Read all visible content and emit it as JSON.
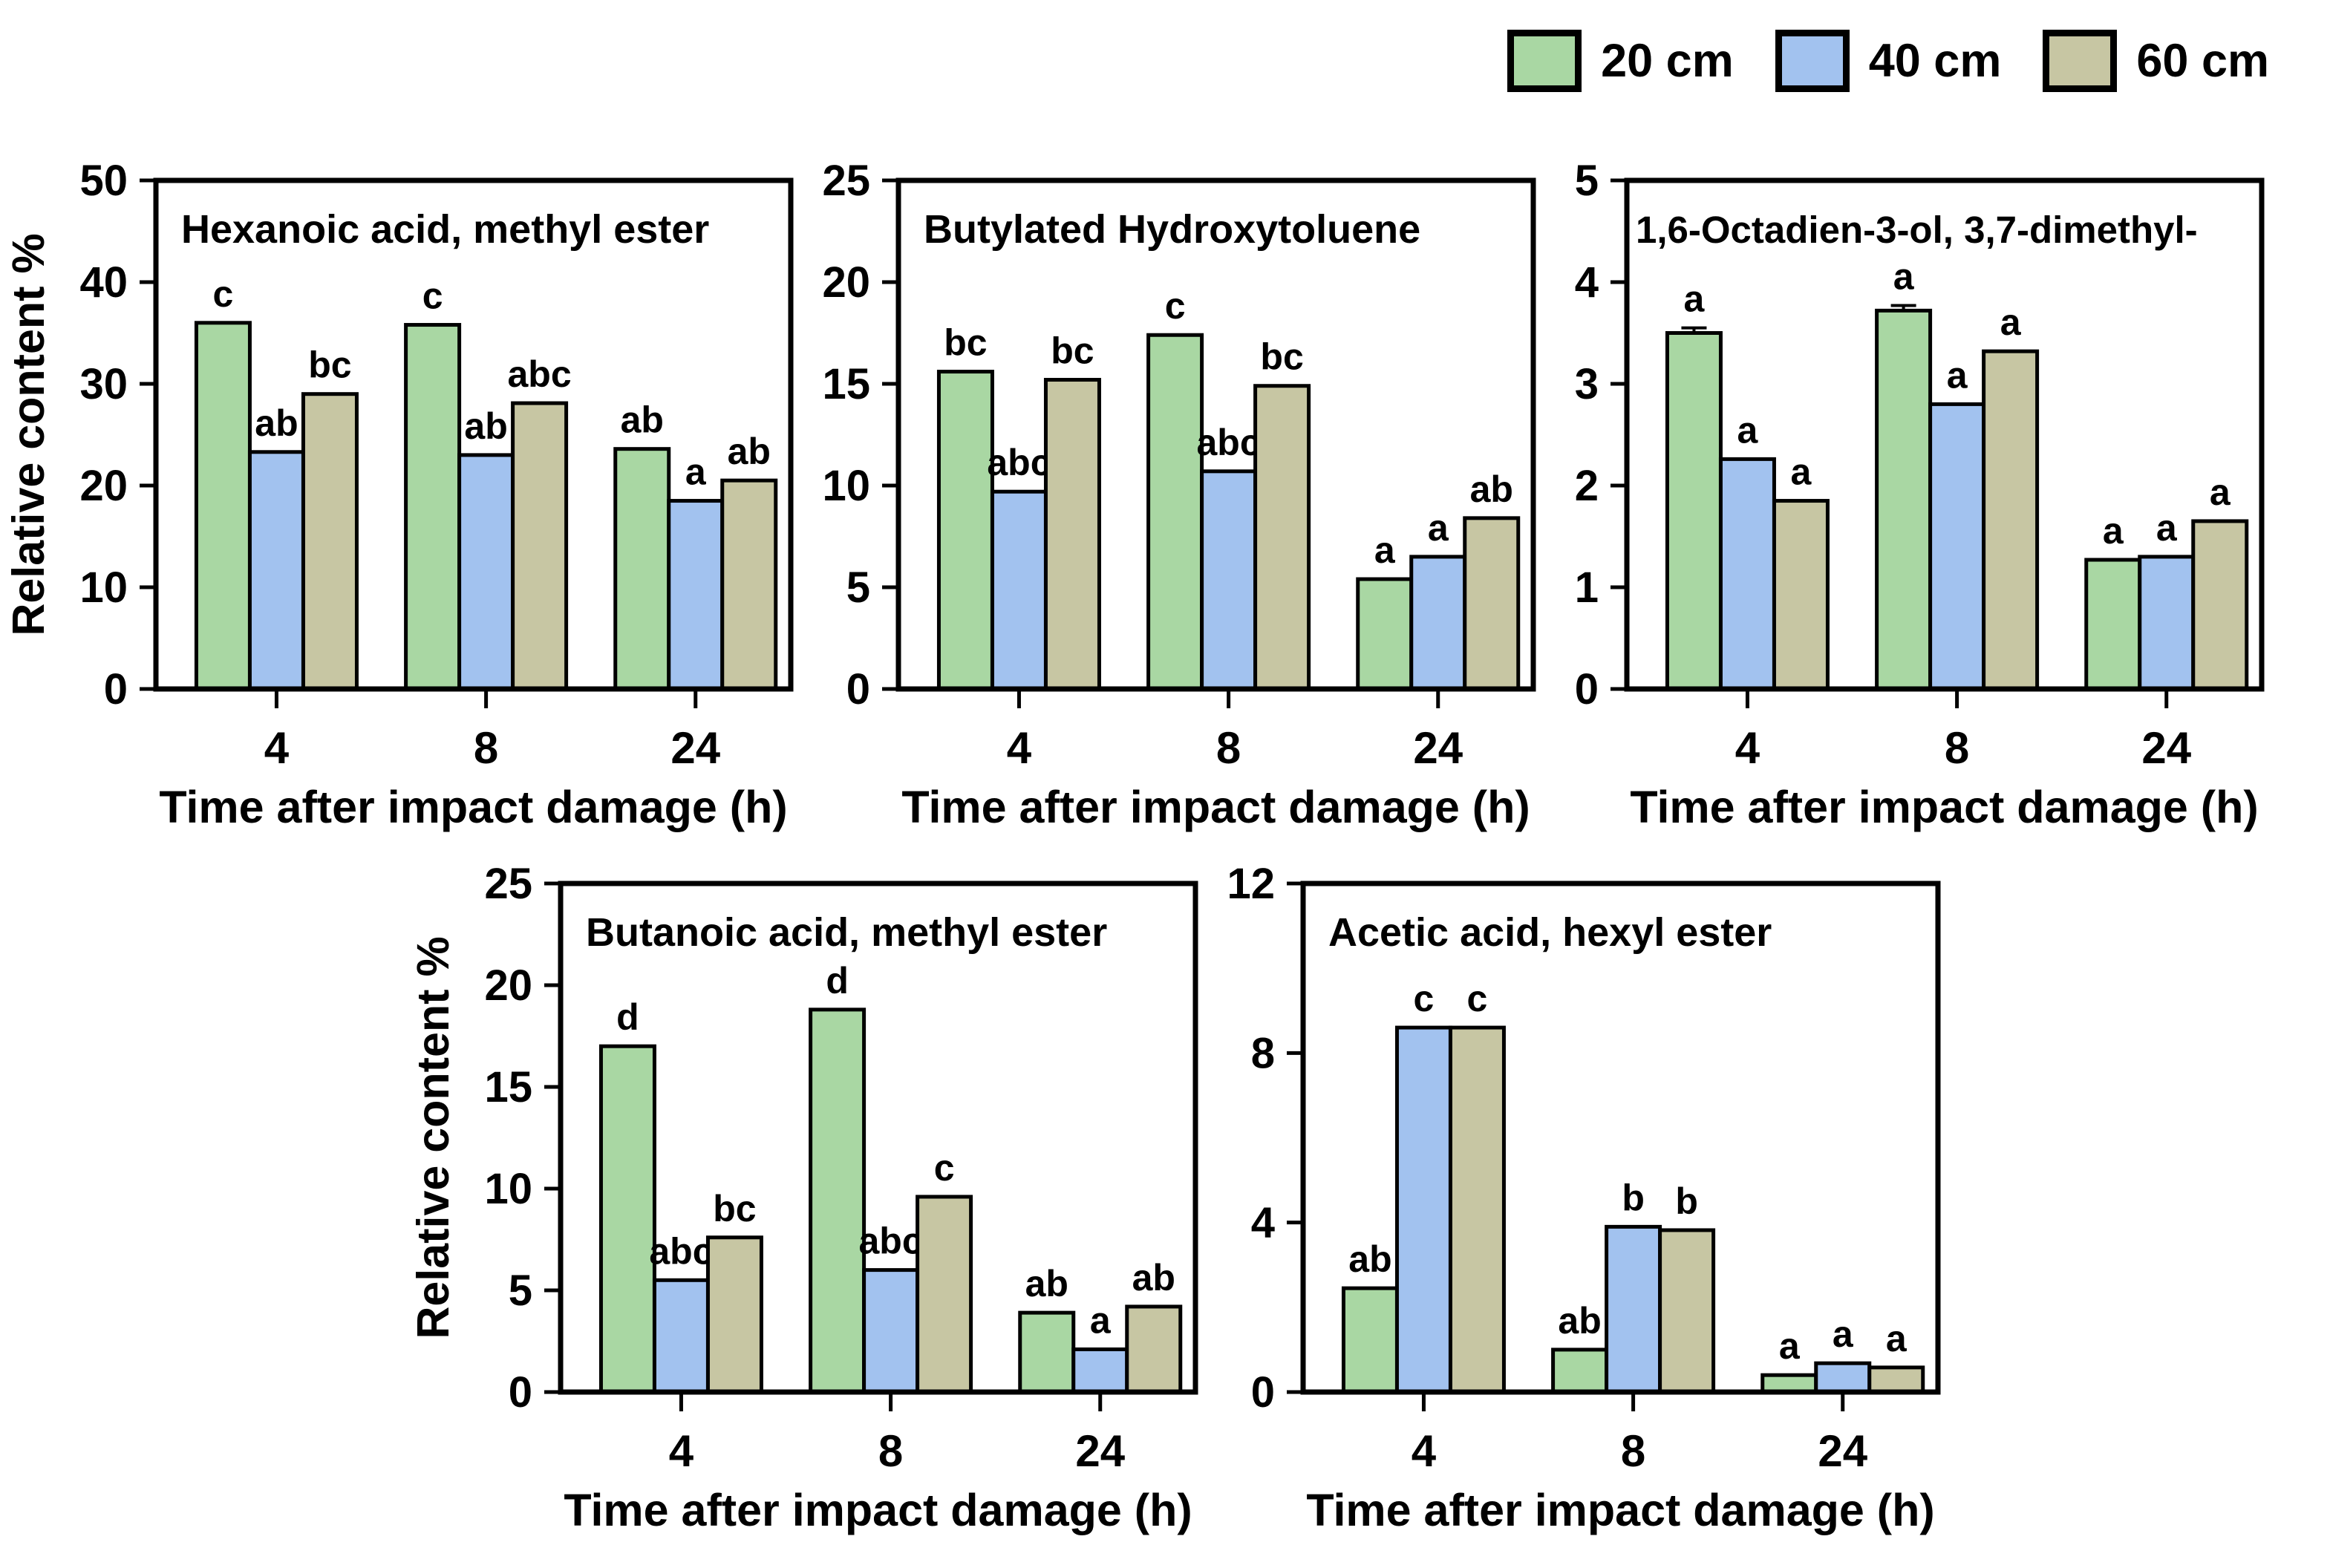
{
  "figure": {
    "xlabel": "Time after impact damage (h)",
    "ylabel": "Relative content %"
  },
  "legend": {
    "items": [
      {
        "label": "20 cm",
        "color": "#a9d7a3"
      },
      {
        "label": "40 cm",
        "color": "#a2c2ef"
      },
      {
        "label": "60 cm",
        "color": "#c7c6a3"
      }
    ],
    "border_color": "#000000",
    "position": "top-right"
  },
  "chart_data": [
    {
      "type": "bar",
      "title": "Hexanoic acid, methyl ester",
      "categories": [
        "4",
        "8",
        "24"
      ],
      "xlabel": "Time after impact damage (h)",
      "ylabel": "Relative content %",
      "ylim": [
        0,
        50
      ],
      "ytick_step": 10,
      "grid": false,
      "series": [
        {
          "name": "20 cm",
          "values": [
            36.0,
            35.8,
            23.6
          ],
          "letters": [
            "c",
            "c",
            "ab"
          ]
        },
        {
          "name": "40 cm",
          "values": [
            23.3,
            23.0,
            18.5
          ],
          "letters": [
            "ab",
            "ab",
            "a"
          ]
        },
        {
          "name": "60 cm",
          "values": [
            29.0,
            28.1,
            20.5
          ],
          "letters": [
            "bc",
            "abc",
            "ab"
          ]
        }
      ]
    },
    {
      "type": "bar",
      "title": "Butylated Hydroxytoluene",
      "categories": [
        "4",
        "8",
        "24"
      ],
      "xlabel": "Time after impact damage (h)",
      "ylabel": "",
      "ylim": [
        0,
        25
      ],
      "ytick_step": 5,
      "grid": false,
      "series": [
        {
          "name": "20 cm",
          "values": [
            15.6,
            17.4,
            5.4
          ],
          "letters": [
            "bc",
            "c",
            "a"
          ]
        },
        {
          "name": "40 cm",
          "values": [
            9.7,
            10.7,
            6.5
          ],
          "letters": [
            "abc",
            "abc",
            "a"
          ]
        },
        {
          "name": "60 cm",
          "values": [
            15.2,
            14.9,
            8.4
          ],
          "letters": [
            "bc",
            "bc",
            "ab"
          ]
        }
      ]
    },
    {
      "type": "bar",
      "title": "1,6-Octadien-3-ol, 3,7-dimethyl-",
      "categories": [
        "4",
        "8",
        "24"
      ],
      "xlabel": "Time after impact damage (h)",
      "ylabel": "",
      "ylim": [
        0,
        5
      ],
      "ytick_step": 1,
      "grid": false,
      "series": [
        {
          "name": "20 cm",
          "values": [
            3.5,
            3.72,
            1.27
          ],
          "letters": [
            "a",
            "a",
            "a"
          ],
          "err": [
            0.05,
            0.05,
            0
          ]
        },
        {
          "name": "40 cm",
          "values": [
            2.26,
            2.8,
            1.3
          ],
          "letters": [
            "a",
            "a",
            "a"
          ]
        },
        {
          "name": "60 cm",
          "values": [
            1.85,
            3.32,
            1.65
          ],
          "letters": [
            "a",
            "a",
            "a"
          ]
        }
      ]
    },
    {
      "type": "bar",
      "title": "Butanoic acid, methyl ester",
      "categories": [
        "4",
        "8",
        "24"
      ],
      "xlabel": "Time after impact damage (h)",
      "ylabel": "Relative content %",
      "ylim": [
        0,
        25
      ],
      "ytick_step": 5,
      "grid": false,
      "series": [
        {
          "name": "20 cm",
          "values": [
            17.0,
            18.8,
            3.9
          ],
          "letters": [
            "d",
            "d",
            "ab"
          ]
        },
        {
          "name": "40 cm",
          "values": [
            5.5,
            6.0,
            2.1
          ],
          "letters": [
            "abc",
            "abc",
            "a"
          ]
        },
        {
          "name": "60 cm",
          "values": [
            7.6,
            9.6,
            4.2
          ],
          "letters": [
            "bc",
            "c",
            "ab"
          ]
        }
      ]
    },
    {
      "type": "bar",
      "title": "Acetic acid, hexyl ester",
      "categories": [
        "4",
        "8",
        "24"
      ],
      "xlabel": "Time after impact damage (h)",
      "ylabel": "",
      "ylim": [
        0,
        12
      ],
      "ytick_step": 4,
      "grid": false,
      "series": [
        {
          "name": "20 cm",
          "values": [
            2.45,
            1.0,
            0.4
          ],
          "letters": [
            "ab",
            "ab",
            "a"
          ]
        },
        {
          "name": "40 cm",
          "values": [
            8.6,
            3.9,
            0.68
          ],
          "letters": [
            "c",
            "b",
            "a"
          ]
        },
        {
          "name": "60 cm",
          "values": [
            8.6,
            3.82,
            0.58
          ],
          "letters": [
            "c",
            "b",
            "a"
          ]
        }
      ]
    }
  ]
}
